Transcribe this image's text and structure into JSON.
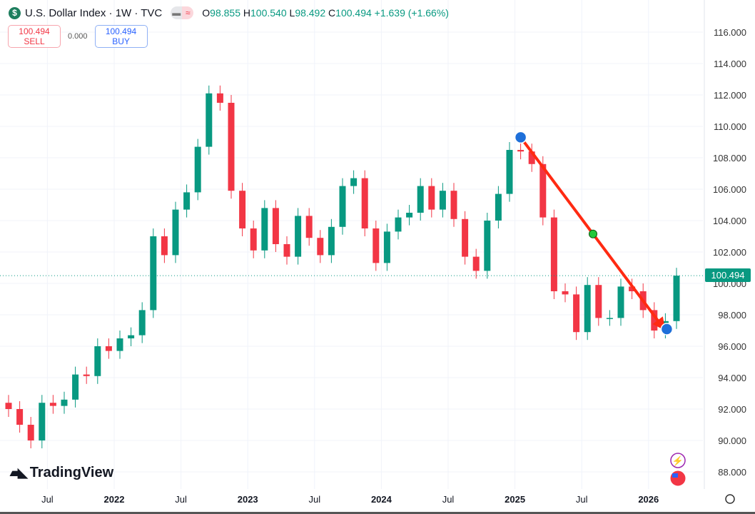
{
  "header": {
    "symbol_icon": "dollar-icon",
    "title": "U.S. Dollar Index · 1W · TVC",
    "open_label": "O",
    "open": "98.855",
    "high_label": "H",
    "high": "100.540",
    "low_label": "L",
    "low": "98.492",
    "close_label": "C",
    "close": "100.494",
    "change": "+1.639 (+1.66%)"
  },
  "trade": {
    "sell_price": "100.494",
    "sell_label": "SELL",
    "spread": "0.000",
    "buy_price": "100.494",
    "buy_label": "BUY"
  },
  "brand": "TradingView",
  "last_price_label": "100.494",
  "colors": {
    "up": "#089981",
    "down": "#f23645",
    "arrow": "#ff2a12",
    "anchor": "#1e6fd9",
    "midpoint": "#22c83a",
    "grid": "#f0f3fa"
  },
  "chart_data": {
    "type": "candlestick",
    "title": "U.S. Dollar Index · 1W · TVC",
    "interval": "1W",
    "ylim": [
      87,
      117
    ],
    "y_ticks": [
      "116.000",
      "114.000",
      "112.000",
      "110.000",
      "108.000",
      "106.000",
      "104.000",
      "102.000",
      "100.000",
      "98.000",
      "96.000",
      "94.000",
      "92.000",
      "90.000",
      "88.000"
    ],
    "x_ticks": [
      "Jul",
      "2022",
      "Jul",
      "2023",
      "Jul",
      "2024",
      "Jul",
      "2025",
      "Jul",
      "2026"
    ],
    "grid": true,
    "approx_monthly_closes": {
      "start": "2021-03",
      "values": [
        92.0,
        91.0,
        90.0,
        92.4,
        92.2,
        92.6,
        94.2,
        94.1,
        96.0,
        95.7,
        96.5,
        96.7,
        98.3,
        103.0,
        101.8,
        104.7,
        105.8,
        108.7,
        112.1,
        111.5,
        105.9,
        103.5,
        102.1,
        104.8,
        102.5,
        101.7,
        104.3,
        102.9,
        101.8,
        103.6,
        106.2,
        106.7,
        103.5,
        101.3,
        103.3,
        104.2,
        104.5,
        106.2,
        104.7,
        105.9,
        104.1,
        101.7,
        100.8,
        104.0,
        105.7,
        108.5,
        108.4,
        107.6,
        104.2,
        99.5,
        99.3,
        96.9,
        99.9,
        97.8,
        97.8,
        99.8,
        99.5,
        98.3,
        97.0,
        97.6,
        100.494
      ]
    },
    "last_price": 100.494,
    "trend_arrow": {
      "from": {
        "date": "2025-01",
        "price": 109.3
      },
      "to": {
        "date": "2026-02",
        "price": 97.0
      }
    }
  }
}
